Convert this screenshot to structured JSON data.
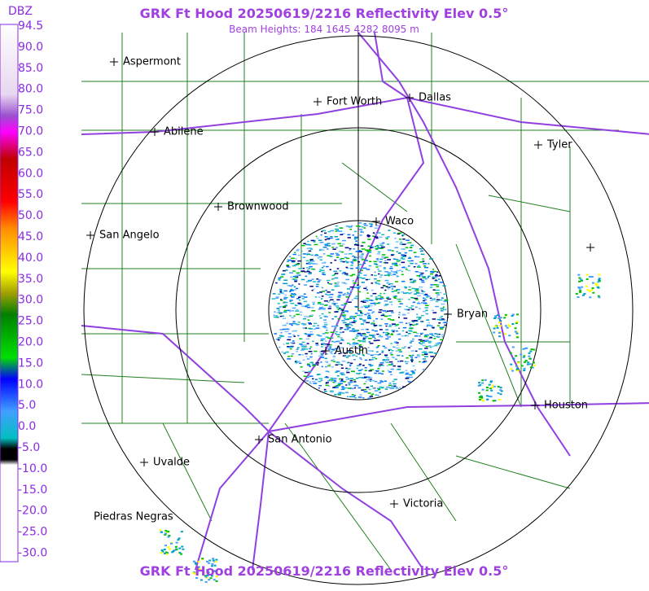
{
  "header": {
    "title": "GRK Ft Hood 20250619/2216 Reflectivity Elev 0.5°",
    "subtitle": "Beam Heights: 184 1645 4282 8095 m"
  },
  "legend": {
    "unit": "DBZ",
    "labels": [
      "94.5",
      "90.0",
      "85.0",
      "80.0",
      "75.0",
      "70.0",
      "65.0",
      "60.0",
      "55.0",
      "50.0",
      "45.0",
      "40.0",
      "35.0",
      "30.0",
      "25.0",
      "20.0",
      "15.0",
      "10.0",
      "5.0",
      "0.0",
      "-5.0",
      "-10.0",
      "-15.0",
      "-20.0",
      "-25.0",
      "-30.0"
    ]
  },
  "cities": [
    "Aspermont",
    "Fort Worth",
    "Dallas",
    "Abilene",
    "Tyler",
    "Brownwood",
    "Waco",
    "San Angelo",
    "Bryan",
    "Austin",
    "Houston",
    "San Antonio",
    "Uvalde",
    "Victoria",
    "Piedras Negras"
  ],
  "footer": {
    "title": "GRK Ft Hood 20250619/2216 Reflectivity Elev 0.5°"
  }
}
